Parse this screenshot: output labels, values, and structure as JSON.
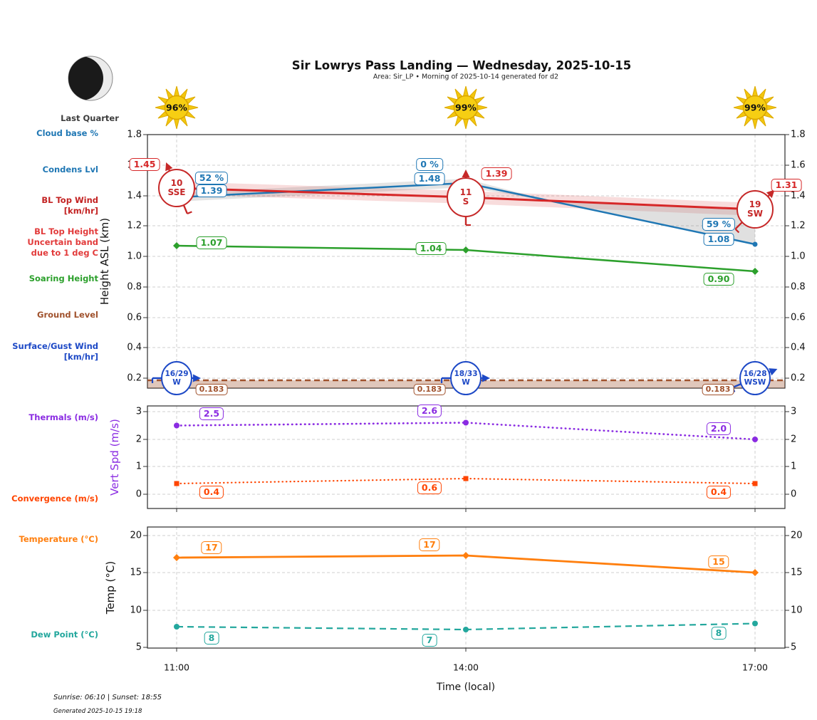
{
  "header": {
    "title": "Sir Lowrys Pass Landing — Wednesday, 2025-10-15",
    "subtitle": "Area: Sir_LP • Morning of 2025-10-14 generated for d2",
    "moon_phase_label": "Last Quarter"
  },
  "suns": [
    {
      "time": "11:00",
      "pct": "96%"
    },
    {
      "time": "14:00",
      "pct": "99%"
    },
    {
      "time": "17:00",
      "pct": "99%"
    }
  ],
  "left_labels": {
    "cloud_base": "Cloud base %",
    "condens_lvl": "Condens Lvl",
    "bl_top_wind_1": "BL Top Wind",
    "bl_top_wind_2": "[km/hr]",
    "bl_top_height_1": "BL Top Height",
    "bl_top_height_2": "Uncertain band",
    "bl_top_height_3": "due to 1 deg C",
    "soaring_height": "Soaring Height",
    "ground_level": "Ground Level",
    "surface_wind_1": "Surface/Gust Wind",
    "surface_wind_2": "[km/hr]",
    "thermals": "Thermals (m/s)",
    "convergence": "Convergence (m/s)",
    "temperature": "Temperature (°C)",
    "dew_point": "Dew Point (°C)"
  },
  "top_chart": {
    "ylabel": "Height ASL (km)",
    "yticks": [
      "1.8",
      "1.6",
      "1.4",
      "1.2",
      "1.0",
      "0.8",
      "0.6",
      "0.4",
      "0.2"
    ],
    "bl_top_labels": [
      "1.45",
      "1.39",
      "1.31"
    ],
    "bl_top_wind": [
      {
        "speed": "10",
        "dir": "SSE"
      },
      {
        "speed": "11",
        "dir": "S"
      },
      {
        "speed": "19",
        "dir": "SW"
      }
    ],
    "cloud_pct_labels": [
      "52 %",
      "0 %",
      "59 %"
    ],
    "condens_labels": [
      "1.39",
      "1.48",
      "1.08"
    ],
    "soaring_labels": [
      "1.07",
      "1.04",
      "0.90"
    ],
    "ground_labels": [
      "0.183",
      "0.183",
      "0.183"
    ],
    "surface_wind": [
      {
        "speed": "16/29",
        "dir": "W"
      },
      {
        "speed": "18/33",
        "dir": "W"
      },
      {
        "speed": "16/28",
        "dir": "WSW"
      }
    ]
  },
  "mid_chart": {
    "ylabel": "Vert Spd (m/s)",
    "yticks": [
      "3",
      "2",
      "1",
      "0"
    ],
    "thermal_labels": [
      "2.5",
      "2.6",
      "2.0"
    ],
    "convergence_labels": [
      "0.4",
      "0.6",
      "0.4"
    ]
  },
  "bottom_chart": {
    "ylabel": "Temp (°C)",
    "yticks": [
      "20",
      "15",
      "10",
      "5"
    ],
    "temp_labels": [
      "17",
      "17",
      "15"
    ],
    "dew_labels": [
      "8",
      "7",
      "8"
    ]
  },
  "xaxis": {
    "ticks": [
      "11:00",
      "14:00",
      "17:00"
    ],
    "label": "Time (local)"
  },
  "footer": {
    "sun_times": "Sunrise: 06:10 | Sunset: 18:55",
    "generated": "Generated 2025-10-15 19:18"
  },
  "colors": {
    "cloud_blue": "#1f77b4",
    "bl_red": "#d62728",
    "soaring_green": "#2ca02c",
    "ground_brown": "#a0522d",
    "surface_wind_blue": "#1d49c6",
    "thermal_purple": "#8a2be2",
    "convergence_orangered": "#ff4500",
    "temp_orange": "#ff7f0e",
    "dew_teal": "#23a79d",
    "sun_gold": "#f2c200"
  },
  "chart_data": [
    {
      "type": "line",
      "title": "Sir Lowrys Pass Landing — Wednesday, 2025-10-15",
      "x": [
        "11:00",
        "14:00",
        "17:00"
      ],
      "xlabel": "Time (local)",
      "ylabel": "Height ASL (km)",
      "ylim": [
        0.15,
        1.8
      ],
      "grid": true,
      "legend_position": "left",
      "series": [
        {
          "name": "BL Top Height (km)",
          "values": [
            1.45,
            1.39,
            1.31
          ]
        },
        {
          "name": "Condensation Level (km)",
          "values": [
            1.39,
            1.48,
            1.08
          ]
        },
        {
          "name": "Cloud base (%)",
          "values": [
            52,
            0,
            59
          ]
        },
        {
          "name": "Soaring Height (km)",
          "values": [
            1.07,
            1.04,
            0.9
          ]
        },
        {
          "name": "Ground Level (km)",
          "values": [
            0.183,
            0.183,
            0.183
          ]
        },
        {
          "name": "BL Top Wind (km/hr)",
          "values": [
            "10 SSE",
            "11 S",
            "19 SW"
          ]
        },
        {
          "name": "Surface/Gust Wind (km/hr)",
          "values": [
            "16/29 W",
            "18/33 W",
            "16/28 WSW"
          ]
        },
        {
          "name": "Sunshine (%)",
          "values": [
            96,
            99,
            99
          ]
        }
      ]
    },
    {
      "type": "line",
      "x": [
        "11:00",
        "14:00",
        "17:00"
      ],
      "ylabel": "Vert Spd (m/s)",
      "ylim": [
        -0.6,
        3
      ],
      "grid": true,
      "series": [
        {
          "name": "Thermals (m/s)",
          "values": [
            2.5,
            2.6,
            2.0
          ]
        },
        {
          "name": "Convergence (m/s)",
          "values": [
            0.4,
            0.6,
            0.4
          ]
        }
      ]
    },
    {
      "type": "line",
      "x": [
        "11:00",
        "14:00",
        "17:00"
      ],
      "ylabel": "Temp (°C)",
      "ylim": [
        5,
        21
      ],
      "grid": true,
      "series": [
        {
          "name": "Temperature (°C)",
          "values": [
            17,
            17,
            15
          ]
        },
        {
          "name": "Dew Point (°C)",
          "values": [
            8,
            7,
            8
          ]
        }
      ]
    }
  ]
}
